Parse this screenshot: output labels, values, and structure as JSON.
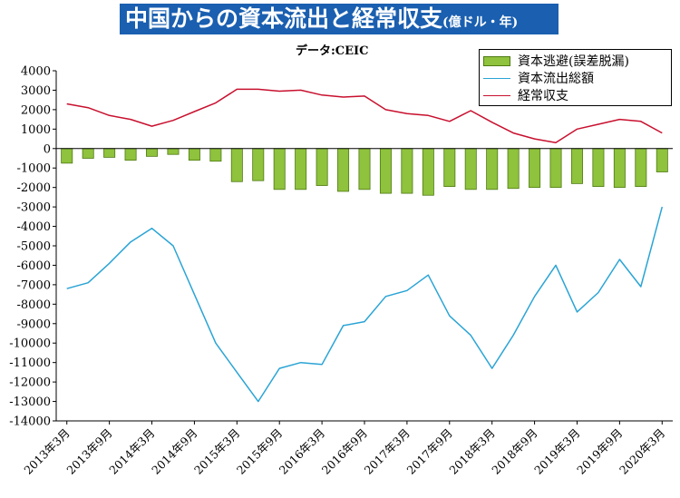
{
  "title": "中国からの資本流出と経常収支",
  "unit": "(億ドル・年)",
  "source": "データ:CEIC",
  "legend": [
    "資本逃避(誤差脱漏)",
    "資本流出総額",
    "経常収支"
  ],
  "colors": {
    "title_bg": "#1a5fb0",
    "bar": "#8fc23d",
    "bar_edge": "#4e7a12",
    "outflow": "#2aa4d5",
    "current_account": "#c8102e"
  },
  "chart_data": {
    "type": "bar+line",
    "ylim": [
      -14000,
      4000
    ],
    "yticks": [
      4000,
      3000,
      2000,
      1000,
      0,
      -1000,
      -2000,
      -3000,
      -4000,
      -5000,
      -6000,
      -7000,
      -8000,
      -9000,
      -10000,
      -11000,
      -12000,
      -13000,
      -14000
    ],
    "xtick_labels": [
      "2013年3月",
      "2013年9月",
      "2014年3月",
      "2014年9月",
      "2015年3月",
      "2015年9月",
      "2016年3月",
      "2016年9月",
      "2017年3月",
      "2017年9月",
      "2018年3月",
      "2018年9月",
      "2019年3月",
      "2019年9月",
      "2020年3月"
    ],
    "categories": [
      "2013Q1",
      "2013Q2",
      "2013Q3",
      "2013Q4",
      "2014Q1",
      "2014Q2",
      "2014Q3",
      "2014Q4",
      "2015Q1",
      "2015Q2",
      "2015Q3",
      "2015Q4",
      "2016Q1",
      "2016Q2",
      "2016Q3",
      "2016Q4",
      "2017Q1",
      "2017Q2",
      "2017Q3",
      "2017Q4",
      "2018Q1",
      "2018Q2",
      "2018Q3",
      "2018Q4",
      "2019Q1",
      "2019Q2",
      "2019Q3",
      "2019Q4",
      "2020Q1"
    ],
    "series": [
      {
        "name": "資本逃避(誤差脱漏)",
        "type": "bar",
        "values": [
          -750,
          -500,
          -450,
          -600,
          -400,
          -300,
          -600,
          -650,
          -1700,
          -1650,
          -2100,
          -2100,
          -1900,
          -2200,
          -2100,
          -2300,
          -2300,
          -2400,
          -1950,
          -2100,
          -2100,
          -2050,
          -2000,
          -2000,
          -1800,
          -1950,
          -2000,
          -1950,
          -1200
        ]
      },
      {
        "name": "資本流出総額",
        "type": "line",
        "values": [
          -7200,
          -6900,
          -5900,
          -4800,
          -4100,
          -5000,
          -7500,
          -10000,
          -11500,
          -13000,
          -11300,
          -11000,
          -11100,
          -9100,
          -8900,
          -7600,
          -7300,
          -6500,
          -8600,
          -9600,
          -11300,
          -9600,
          -7600,
          -6000,
          -8400,
          -7400,
          -5700,
          -7100,
          -3000
        ]
      },
      {
        "name": "経常収支",
        "type": "line",
        "values": [
          2300,
          2100,
          1700,
          1500,
          1150,
          1450,
          1900,
          2350,
          3050,
          3050,
          2950,
          3000,
          2750,
          2650,
          2700,
          2000,
          1800,
          1700,
          1400,
          1950,
          1350,
          800,
          500,
          300,
          1000,
          1250,
          1500,
          1400,
          800
        ]
      }
    ]
  }
}
